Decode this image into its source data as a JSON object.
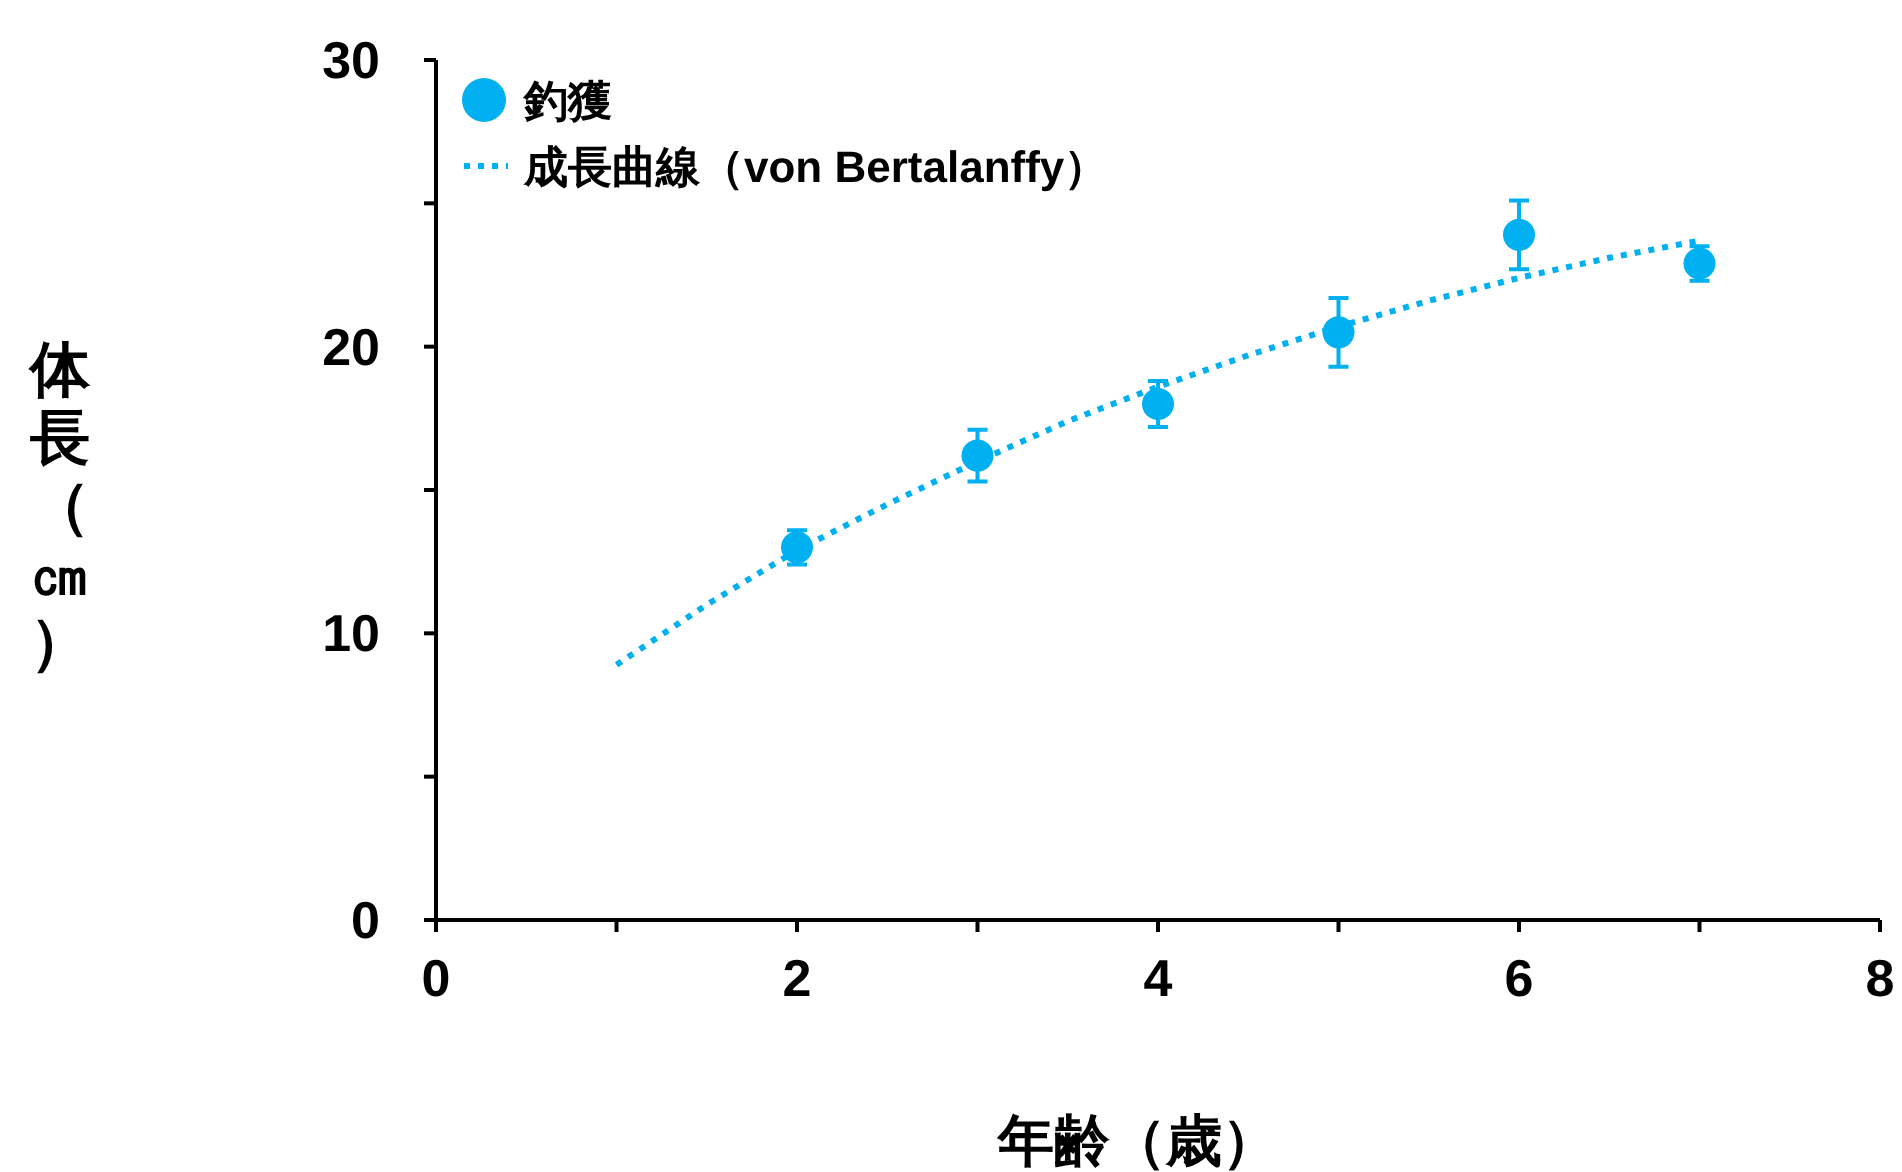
{
  "chart_data": {
    "type": "scatter",
    "xlabel": "年齢（歳）",
    "ylabel": "体長（㎝）",
    "xlim": [
      0,
      8
    ],
    "xticks": [
      0,
      {
        "value": 1,
        "label": null
      },
      2,
      {
        "value": 3,
        "label": null
      },
      4,
      {
        "value": 5,
        "label": null
      },
      6,
      {
        "value": 7,
        "label": null
      },
      8
    ],
    "ylim": [
      0,
      30
    ],
    "yticks": [
      0,
      {
        "value": 5,
        "label": null
      },
      10,
      {
        "value": 15,
        "label": null
      },
      20,
      {
        "value": 25,
        "label": null
      },
      30
    ],
    "grid": false,
    "legend": "top left",
    "series": [
      {
        "name": "釣獲",
        "marker": "circle",
        "color": "#00b0f0",
        "x": [
          2,
          3,
          4,
          5,
          6,
          7
        ],
        "values": [
          13.0,
          16.2,
          18.0,
          20.5,
          23.9,
          22.9
        ],
        "errors": [
          0.6,
          0.9,
          0.8,
          1.2,
          1.2,
          0.6
        ]
      },
      {
        "name": "成長曲線（von Bertalanffy）",
        "type": "line",
        "line_style": "dotted",
        "marker": "none",
        "color": "#00b0f0",
        "x": [
          1,
          1.5,
          2,
          2.5,
          3,
          3.5,
          4,
          4.5,
          5,
          5.5,
          6,
          6.5,
          7
        ],
        "values": [
          8.9,
          11.0,
          12.9,
          14.5,
          16.0,
          17.4,
          18.6,
          19.7,
          20.7,
          21.6,
          22.4,
          23.1,
          23.7
        ]
      }
    ]
  }
}
